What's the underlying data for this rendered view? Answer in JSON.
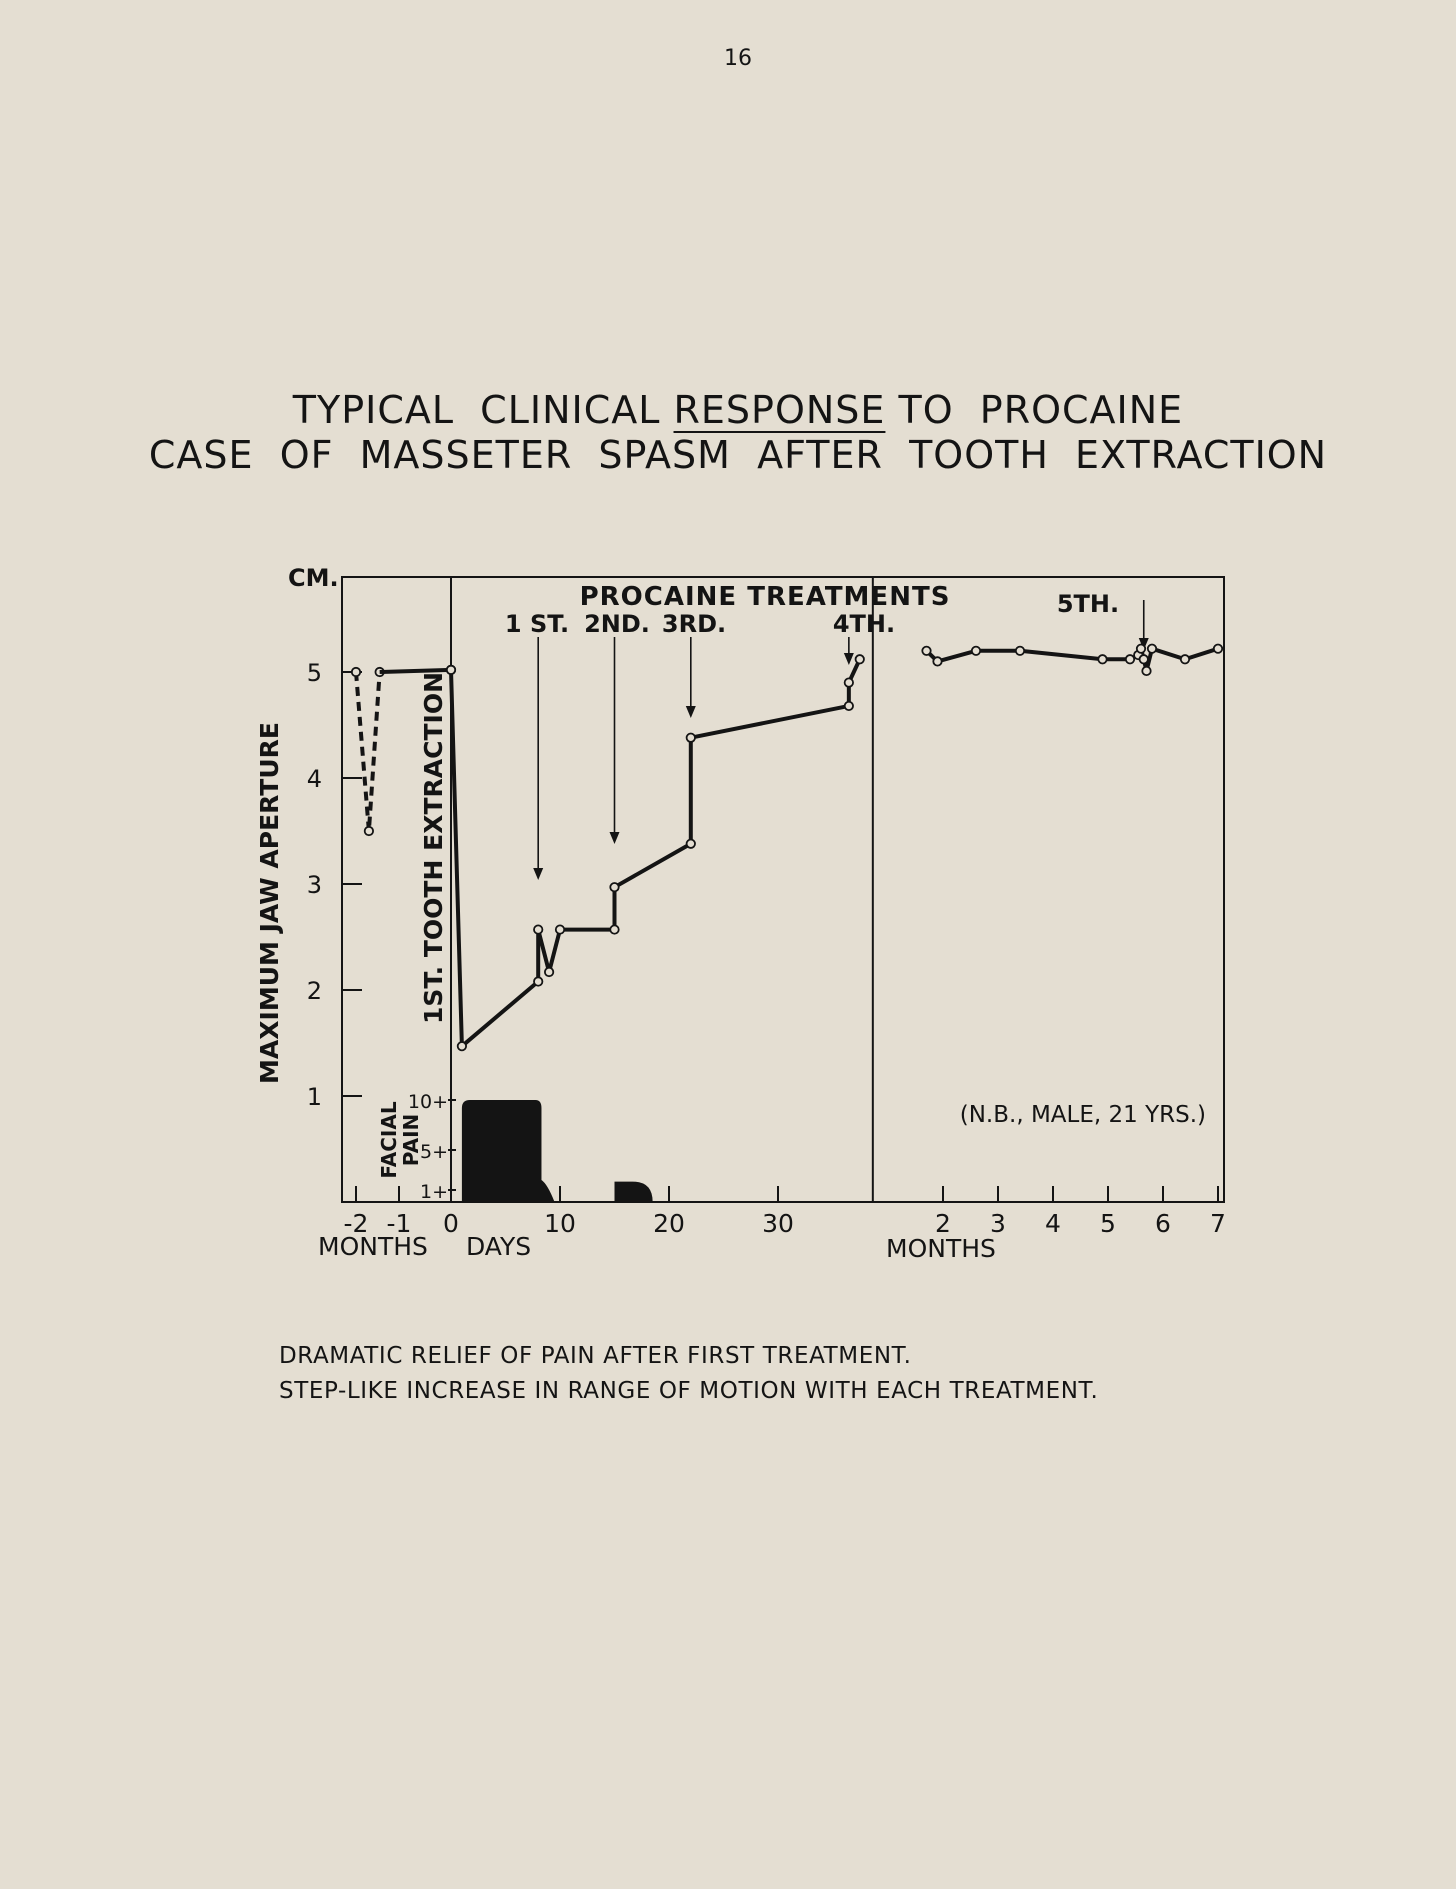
{
  "page_number": "16",
  "title": {
    "line1_pre": "TYPICAL  CLINICAL ",
    "line1_underlined": "RESPONSE",
    "line1_post": " TO  PROCAINE",
    "line2": "CASE  OF  MASSETER  SPASM  AFTER  TOOTH  EXTRACTION"
  },
  "caption": {
    "line1": "DRAMATIC  RELIEF  OF  PAIN  AFTER  FIRST  TREATMENT.",
    "line2": "STEP-LIKE  INCREASE  IN  RANGE  OF  MOTION  WITH  EACH  TREATMENT."
  },
  "chart_data": {
    "type": "line",
    "ylabel": "MAXIMUM  JAW  APERTURE",
    "yunit": "CM.",
    "ylim": [
      0,
      5.9
    ],
    "yticks": [
      "1",
      "2",
      "3",
      "4",
      "5"
    ],
    "annotations": {
      "procaine_treatments": "PROCAINE  TREATMENTS",
      "extraction_label": "1ST.  TOOTH  EXTRACTION",
      "patient_note": "(N.B.,  MALE,  21 YRS.)",
      "facial_pain_label_1": "FACIAL",
      "facial_pain_label_2": "PAIN",
      "treatments": [
        {
          "label": "1 ST.",
          "day": 8
        },
        {
          "label": "2ND.",
          "day": 15
        },
        {
          "label": "3RD.",
          "day": 22
        },
        {
          "label": "4TH.",
          "day": 36.5
        },
        {
          "label": "5TH.",
          "months": 5.65
        }
      ]
    },
    "pain_scale": [
      "10+",
      "5+",
      "1+"
    ],
    "x_segments": {
      "before": {
        "unit": "MONTHS",
        "ticks": [
          "-2",
          "-1"
        ]
      },
      "days": {
        "unit": "DAYS",
        "ticks": [
          "0",
          "10",
          "20",
          "30"
        ],
        "xlim": [
          0,
          38
        ]
      },
      "after": {
        "unit": "MONTHS",
        "ticks": [
          "2",
          "3",
          "4",
          "5",
          "6",
          "7"
        ]
      }
    },
    "series": [
      {
        "segment": "before",
        "style": "dashed",
        "points": [
          {
            "months": -2.0,
            "y": 5.0
          },
          {
            "months": -1.7,
            "y": 3.5
          },
          {
            "months": -1.45,
            "y": 5.0
          }
        ]
      },
      {
        "segment": "before-to-extraction",
        "style": "solid",
        "points": [
          {
            "months": -1.45,
            "y": 5.0
          },
          {
            "day": 0,
            "y": 5.02
          }
        ]
      },
      {
        "segment": "days",
        "style": "solid",
        "points": [
          {
            "day": 0,
            "y": 5.02
          },
          {
            "day": 1,
            "y": 1.47
          },
          {
            "day": 8,
            "y": 2.08
          },
          {
            "day": 8,
            "y": 2.57
          },
          {
            "day": 9,
            "y": 2.17
          },
          {
            "day": 10,
            "y": 2.57
          },
          {
            "day": 15,
            "y": 2.57
          },
          {
            "day": 15,
            "y": 2.97
          },
          {
            "day": 22,
            "y": 3.38
          },
          {
            "day": 22,
            "y": 4.38
          },
          {
            "day": 36.5,
            "y": 4.68
          },
          {
            "day": 36.5,
            "y": 4.9
          },
          {
            "day": 37.5,
            "y": 5.12
          }
        ]
      },
      {
        "segment": "after",
        "style": "solid",
        "points": [
          {
            "months": 1.7,
            "y": 5.2
          },
          {
            "months": 1.9,
            "y": 5.1
          },
          {
            "months": 2.6,
            "y": 5.2
          },
          {
            "months": 3.4,
            "y": 5.2
          },
          {
            "months": 4.9,
            "y": 5.12
          },
          {
            "months": 5.4,
            "y": 5.12
          },
          {
            "months": 5.55,
            "y": 5.16
          },
          {
            "months": 5.6,
            "y": 5.22
          },
          {
            "months": 5.65,
            "y": 5.12
          },
          {
            "months": 5.7,
            "y": 5.01
          },
          {
            "months": 5.8,
            "y": 5.22
          },
          {
            "months": 6.4,
            "y": 5.12
          },
          {
            "months": 7.0,
            "y": 5.22
          }
        ]
      }
    ],
    "pain_areas": [
      {
        "day_start": 1,
        "day_end": 9.5,
        "level_start": 10,
        "level_end": 0
      },
      {
        "day_start": 15,
        "day_end": 18.5,
        "level_start": 2,
        "level_end": 0
      }
    ]
  }
}
